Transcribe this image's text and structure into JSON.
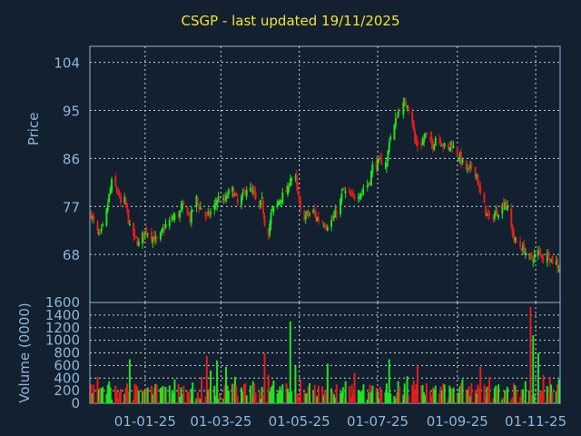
{
  "title": "CSGP - last updated 19/11/2025",
  "colors": {
    "background": "#13202f",
    "title": "#f5e23a",
    "axis_text": "#8fb4d8",
    "frame": "#8fb4d8",
    "grid": "#c8d2dc",
    "up": "#22e022",
    "down": "#e01e1e"
  },
  "chart_data": [
    {
      "type": "candlestick",
      "title": "CSGP - last updated 19/11/2025",
      "ylabel": "Price",
      "ylim": [
        59,
        107
      ],
      "yticks": [
        68,
        77,
        86,
        95,
        104
      ],
      "x_tick_labels": [
        "01-01-25",
        "01-03-25",
        "01-05-25",
        "01-07-25",
        "01-09-25",
        "01-11-25"
      ],
      "grid": true,
      "close_series": [
        [
          "2024-11-20",
          75.5
        ],
        [
          "2024-11-22",
          74.0
        ],
        [
          "2024-11-25",
          72.0
        ],
        [
          "2024-11-27",
          71.5
        ],
        [
          "2024-11-29",
          73.0
        ],
        [
          "2024-12-02",
          76.0
        ],
        [
          "2024-12-04",
          79.0
        ],
        [
          "2024-12-06",
          81.5
        ],
        [
          "2024-12-09",
          80.5
        ],
        [
          "2024-12-11",
          79.5
        ],
        [
          "2024-12-13",
          77.5
        ],
        [
          "2024-12-16",
          78.0
        ],
        [
          "2024-12-18",
          76.0
        ],
        [
          "2024-12-20",
          73.0
        ],
        [
          "2024-12-23",
          71.5
        ],
        [
          "2024-12-27",
          70.0
        ],
        [
          "2024-12-30",
          71.5
        ],
        [
          "2025-01-02",
          72.5
        ],
        [
          "2025-01-06",
          71.5
        ],
        [
          "2025-01-08",
          71.0
        ],
        [
          "2025-01-10",
          70.5
        ],
        [
          "2025-01-13",
          71.5
        ],
        [
          "2025-01-15",
          72.5
        ],
        [
          "2025-01-17",
          73.5
        ],
        [
          "2025-01-21",
          74.5
        ],
        [
          "2025-01-23",
          75.0
        ],
        [
          "2025-01-27",
          75.5
        ],
        [
          "2025-01-29",
          76.5
        ],
        [
          "2025-01-31",
          77.0
        ],
        [
          "2025-02-03",
          76.0
        ],
        [
          "2025-02-05",
          74.5
        ],
        [
          "2025-02-07",
          76.5
        ],
        [
          "2025-02-10",
          78.5
        ],
        [
          "2025-02-12",
          77.0
        ],
        [
          "2025-02-14",
          76.5
        ],
        [
          "2025-02-18",
          75.0
        ],
        [
          "2025-02-20",
          75.5
        ],
        [
          "2025-02-24",
          77.0
        ],
        [
          "2025-02-26",
          78.5
        ],
        [
          "2025-03-03",
          78.0
        ],
        [
          "2025-03-05",
          78.5
        ],
        [
          "2025-03-07",
          79.5
        ],
        [
          "2025-03-10",
          80.0
        ],
        [
          "2025-03-12",
          79.0
        ],
        [
          "2025-03-14",
          77.5
        ],
        [
          "2025-03-17",
          78.5
        ],
        [
          "2025-03-19",
          79.5
        ],
        [
          "2025-03-21",
          80.5
        ],
        [
          "2025-03-24",
          80.0
        ],
        [
          "2025-03-26",
          79.5
        ],
        [
          "2025-03-28",
          78.0
        ],
        [
          "2025-03-31",
          77.0
        ],
        [
          "2025-04-02",
          78.0
        ],
        [
          "2025-04-04",
          74.0
        ],
        [
          "2025-04-07",
          72.0
        ],
        [
          "2025-04-09",
          75.5
        ],
        [
          "2025-04-11",
          76.5
        ],
        [
          "2025-04-14",
          77.5
        ],
        [
          "2025-04-16",
          78.5
        ],
        [
          "2025-04-22",
          80.0
        ],
        [
          "2025-04-24",
          82.5
        ],
        [
          "2025-04-28",
          82.0
        ],
        [
          "2025-04-30",
          79.0
        ],
        [
          "2025-05-02",
          76.0
        ],
        [
          "2025-05-05",
          75.0
        ],
        [
          "2025-05-07",
          75.5
        ],
        [
          "2025-05-09",
          75.5
        ],
        [
          "2025-05-12",
          76.0
        ],
        [
          "2025-05-14",
          75.0
        ],
        [
          "2025-05-16",
          74.5
        ],
        [
          "2025-05-20",
          74.0
        ],
        [
          "2025-05-22",
          73.5
        ],
        [
          "2025-05-27",
          74.5
        ],
        [
          "2025-05-29",
          75.5
        ],
        [
          "2025-06-02",
          78.0
        ],
        [
          "2025-06-04",
          80.0
        ],
        [
          "2025-06-06",
          79.5
        ],
        [
          "2025-06-09",
          79.0
        ],
        [
          "2025-06-11",
          78.5
        ],
        [
          "2025-06-13",
          79.0
        ],
        [
          "2025-06-17",
          79.5
        ],
        [
          "2025-06-19",
          80.0
        ],
        [
          "2025-06-23",
          81.0
        ],
        [
          "2025-06-25",
          82.0
        ],
        [
          "2025-06-27",
          84.5
        ],
        [
          "2025-07-01",
          85.0
        ],
        [
          "2025-07-03",
          85.5
        ],
        [
          "2025-07-08",
          85.0
        ],
        [
          "2025-07-10",
          89.5
        ],
        [
          "2025-07-14",
          92.0
        ],
        [
          "2025-07-16",
          94.0
        ],
        [
          "2025-07-18",
          95.5
        ],
        [
          "2025-07-22",
          96.0
        ],
        [
          "2025-07-24",
          96.5
        ],
        [
          "2025-07-28",
          93.0
        ],
        [
          "2025-07-30",
          89.0
        ],
        [
          "2025-08-01",
          88.5
        ],
        [
          "2025-08-05",
          89.0
        ],
        [
          "2025-08-07",
          90.5
        ],
        [
          "2025-08-11",
          89.0
        ],
        [
          "2025-08-13",
          88.5
        ],
        [
          "2025-08-15",
          90.0
        ],
        [
          "2025-08-19",
          89.5
        ],
        [
          "2025-08-21",
          88.5
        ],
        [
          "2025-08-25",
          87.5
        ],
        [
          "2025-08-27",
          89.0
        ],
        [
          "2025-08-29",
          88.0
        ],
        [
          "2025-09-02",
          86.5
        ],
        [
          "2025-09-04",
          85.5
        ],
        [
          "2025-09-08",
          84.0
        ],
        [
          "2025-09-10",
          83.5
        ],
        [
          "2025-09-12",
          84.5
        ],
        [
          "2025-09-16",
          83.0
        ],
        [
          "2025-09-18",
          80.0
        ],
        [
          "2025-09-22",
          77.0
        ],
        [
          "2025-09-24",
          75.5
        ],
        [
          "2025-09-26",
          74.5
        ],
        [
          "2025-09-30",
          75.5
        ],
        [
          "2025-10-02",
          76.0
        ],
        [
          "2025-10-06",
          77.0
        ],
        [
          "2025-10-08",
          78.0
        ],
        [
          "2025-10-10",
          76.5
        ],
        [
          "2025-10-14",
          72.0
        ],
        [
          "2025-10-16",
          70.5
        ],
        [
          "2025-10-20",
          69.5
        ],
        [
          "2025-10-22",
          69.0
        ],
        [
          "2025-10-24",
          68.5
        ],
        [
          "2025-10-28",
          67.0
        ],
        [
          "2025-10-30",
          67.5
        ],
        [
          "2025-11-03",
          68.5
        ],
        [
          "2025-11-05",
          68.0
        ],
        [
          "2025-11-07",
          67.5
        ],
        [
          "2025-11-11",
          68.0
        ],
        [
          "2025-11-13",
          67.0
        ],
        [
          "2025-11-17",
          66.5
        ],
        [
          "2025-11-19",
          65.5
        ]
      ]
    },
    {
      "type": "bar",
      "ylabel": "Volume (0000)",
      "ylim": [
        0,
        1600
      ],
      "yticks": [
        0,
        200,
        400,
        600,
        800,
        1000,
        1200,
        1400,
        1600
      ],
      "x_tick_labels": [
        "01-01-25",
        "01-03-25",
        "01-05-25",
        "01-07-25",
        "01-09-25",
        "01-11-25"
      ],
      "grid": true,
      "volume_series": [
        [
          "2024-11-20",
          300
        ],
        [
          "2024-11-25",
          420
        ],
        [
          "2024-11-29",
          260
        ],
        [
          "2024-12-04",
          350
        ],
        [
          "2024-12-09",
          280
        ],
        [
          "2024-12-13",
          230
        ],
        [
          "2024-12-18",
          320
        ],
        [
          "2024-12-20",
          700
        ],
        [
          "2024-12-27",
          200
        ],
        [
          "2025-01-03",
          250
        ],
        [
          "2025-01-10",
          300
        ],
        [
          "2025-01-17",
          260
        ],
        [
          "2025-01-24",
          380
        ],
        [
          "2025-01-31",
          280
        ],
        [
          "2025-02-07",
          330
        ],
        [
          "2025-02-14",
          420
        ],
        [
          "2025-02-18",
          750
        ],
        [
          "2025-02-21",
          520
        ],
        [
          "2025-02-26",
          680
        ],
        [
          "2025-03-05",
          580
        ],
        [
          "2025-03-12",
          420
        ],
        [
          "2025-03-19",
          300
        ],
        [
          "2025-03-26",
          350
        ],
        [
          "2025-04-02",
          260
        ],
        [
          "2025-04-04",
          800
        ],
        [
          "2025-04-07",
          450
        ],
        [
          "2025-04-11",
          360
        ],
        [
          "2025-04-18",
          300
        ],
        [
          "2025-04-24",
          1300
        ],
        [
          "2025-04-28",
          600
        ],
        [
          "2025-05-02",
          380
        ],
        [
          "2025-05-09",
          320
        ],
        [
          "2025-05-16",
          280
        ],
        [
          "2025-05-23",
          630
        ],
        [
          "2025-05-30",
          300
        ],
        [
          "2025-06-06",
          350
        ],
        [
          "2025-06-13",
          480
        ],
        [
          "2025-06-20",
          300
        ],
        [
          "2025-06-27",
          280
        ],
        [
          "2025-07-03",
          260
        ],
        [
          "2025-07-10",
          700
        ],
        [
          "2025-07-17",
          350
        ],
        [
          "2025-07-24",
          430
        ],
        [
          "2025-07-29",
          360
        ],
        [
          "2025-08-01",
          600
        ],
        [
          "2025-08-08",
          320
        ],
        [
          "2025-08-15",
          280
        ],
        [
          "2025-08-22",
          300
        ],
        [
          "2025-08-29",
          250
        ],
        [
          "2025-09-05",
          380
        ],
        [
          "2025-09-12",
          320
        ],
        [
          "2025-09-19",
          580
        ],
        [
          "2025-09-26",
          420
        ],
        [
          "2025-10-03",
          300
        ],
        [
          "2025-10-10",
          260
        ],
        [
          "2025-10-15",
          320
        ],
        [
          "2025-10-24",
          350
        ],
        [
          "2025-10-28",
          1530
        ],
        [
          "2025-10-30",
          1080
        ],
        [
          "2025-11-03",
          800
        ],
        [
          "2025-11-07",
          450
        ],
        [
          "2025-11-12",
          420
        ],
        [
          "2025-11-19",
          380
        ]
      ]
    }
  ]
}
